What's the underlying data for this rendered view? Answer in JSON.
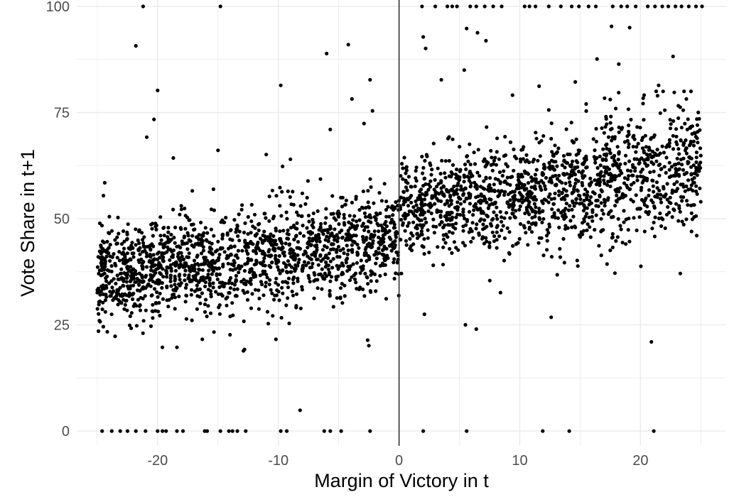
{
  "chart_data": {
    "type": "scatter",
    "title": "",
    "xlabel": "Margin of Victory in t",
    "ylabel": "Vote Share in t+1",
    "xlim": [
      -26.7,
      27.1
    ],
    "ylim": [
      -3.5,
      101.5
    ],
    "x_ticks": [
      -20,
      -10,
      0,
      10,
      20
    ],
    "x_tick_labels": [
      "-20",
      "-10",
      "0",
      "10",
      "20"
    ],
    "y_ticks": [
      0,
      25,
      50,
      75,
      100
    ],
    "y_tick_labels": [
      "0",
      "25",
      "50",
      "75",
      "100"
    ],
    "x_minor_gridlines": [
      -25,
      -15,
      -5,
      5,
      15,
      25
    ],
    "y_minor_gridlines": [
      12.5,
      37.5,
      62.5,
      87.5
    ],
    "grid": true,
    "reference_line_x": 0,
    "legend": "none",
    "colors": {
      "points": "#000000",
      "grid": "#ebebeb",
      "reference_line": "#333333"
    },
    "points": [
      [
        -24.6,
        0
      ],
      [
        -23.8,
        0
      ],
      [
        -23.1,
        0
      ],
      [
        -22.5,
        0
      ],
      [
        -21.8,
        0
      ],
      [
        -21.0,
        0
      ],
      [
        -20.0,
        0
      ],
      [
        -19.6,
        0
      ],
      [
        -19.3,
        0
      ],
      [
        -18.4,
        0
      ],
      [
        -17.9,
        0
      ],
      [
        -16.1,
        0
      ],
      [
        -15.9,
        0
      ],
      [
        -14.8,
        0
      ],
      [
        -14.1,
        0
      ],
      [
        -13.8,
        0
      ],
      [
        -13.4,
        0
      ],
      [
        -12.7,
        0
      ],
      [
        -9.8,
        0
      ],
      [
        -9.3,
        0
      ],
      [
        -6.2,
        0
      ],
      [
        -5.7,
        0
      ],
      [
        -4.8,
        0
      ],
      [
        -2.4,
        0
      ],
      [
        2.0,
        0
      ],
      [
        5.6,
        0
      ],
      [
        11.9,
        0
      ],
      [
        14.1,
        0
      ],
      [
        21.1,
        0
      ],
      [
        -21.2,
        100
      ],
      [
        -14.8,
        100
      ],
      [
        1.9,
        100
      ],
      [
        3.0,
        100
      ],
      [
        4.0,
        100
      ],
      [
        4.4,
        100
      ],
      [
        4.8,
        100
      ],
      [
        5.9,
        100
      ],
      [
        6.4,
        100
      ],
      [
        7.1,
        100
      ],
      [
        7.8,
        100
      ],
      [
        8.5,
        100
      ],
      [
        10.4,
        100
      ],
      [
        10.8,
        100
      ],
      [
        11.3,
        100
      ],
      [
        12.4,
        100
      ],
      [
        13.4,
        100
      ],
      [
        14.3,
        100
      ],
      [
        14.9,
        100
      ],
      [
        15.7,
        100
      ],
      [
        16.3,
        100
      ],
      [
        17.7,
        100
      ],
      [
        18.4,
        100
      ],
      [
        18.9,
        100
      ],
      [
        19.6,
        100
      ],
      [
        20.6,
        100
      ],
      [
        21.2,
        100
      ],
      [
        21.8,
        100
      ],
      [
        22.3,
        100
      ],
      [
        22.9,
        100
      ],
      [
        23.4,
        100
      ],
      [
        24.0,
        100
      ],
      [
        24.6,
        100
      ],
      [
        25.1,
        100
      ],
      [
        -21.8,
        90.7
      ],
      [
        -20.0,
        80.2
      ],
      [
        -20.3,
        73.4
      ],
      [
        -20.9,
        69.2
      ],
      [
        -18.7,
        64.3
      ],
      [
        -15.0,
        66.1
      ],
      [
        -11.0,
        65.1
      ],
      [
        -9.8,
        81.4
      ],
      [
        -9.0,
        64.0
      ],
      [
        -6.0,
        88.9
      ],
      [
        -5.7,
        71.0
      ],
      [
        -4.2,
        91.0
      ],
      [
        -3.9,
        78.2
      ],
      [
        -2.9,
        72.4
      ],
      [
        -2.4,
        82.7
      ],
      [
        -2.2,
        75.4
      ],
      [
        2.0,
        92.8
      ],
      [
        2.2,
        90.1
      ],
      [
        3.5,
        82.7
      ],
      [
        5.4,
        85.0
      ],
      [
        5.6,
        94.8
      ],
      [
        6.5,
        93.8
      ],
      [
        7.2,
        91.9
      ],
      [
        9.4,
        79.1
      ],
      [
        11.6,
        81.2
      ],
      [
        12.4,
        75.6
      ],
      [
        14.6,
        82.2
      ],
      [
        15.5,
        77.0
      ],
      [
        16.4,
        87.6
      ],
      [
        17.6,
        95.3
      ],
      [
        18.2,
        86.4
      ],
      [
        19.1,
        95.0
      ],
      [
        20.3,
        79.1
      ],
      [
        21.5,
        81.4
      ],
      [
        22.7,
        88.2
      ],
      [
        23.8,
        78.2
      ],
      [
        -8.2,
        4.9
      ],
      [
        12.6,
        26.8
      ],
      [
        20.9,
        21.0
      ],
      [
        -19.6,
        19.7
      ],
      [
        -18.4,
        19.7
      ],
      [
        -12.8,
        19.2
      ],
      [
        -2.5,
        20.1
      ],
      [
        -2.6,
        21.4
      ],
      [
        -10.2,
        21.6
      ],
      [
        -16.3,
        21.6
      ],
      [
        5.5,
        25.0
      ],
      [
        6.4,
        24.0
      ],
      [
        2.1,
        27.5
      ],
      [
        8.4,
        32.6
      ],
      [
        13.1,
        36.8
      ],
      [
        23.3,
        37.1
      ],
      [
        -24.9,
        23.5
      ]
    ],
    "clusters": [
      {
        "x_from": -25,
        "x_to": -16,
        "y_center": 38.5,
        "y_spread": 6.0,
        "count": 640,
        "seed": 11
      },
      {
        "x_from": -16,
        "x_to": -8,
        "y_center": 41.0,
        "y_spread": 6.0,
        "count": 470,
        "seed": 23
      },
      {
        "x_from": -8,
        "x_to": 0,
        "y_center": 43.5,
        "y_spread": 5.5,
        "count": 470,
        "seed": 37
      },
      {
        "x_from": 0,
        "x_to": 8,
        "y_center": 53.5,
        "y_spread": 6.0,
        "count": 470,
        "seed": 41
      },
      {
        "x_from": 8,
        "x_to": 17,
        "y_center": 56.5,
        "y_spread": 6.5,
        "count": 520,
        "seed": 53
      },
      {
        "x_from": 17,
        "x_to": 25,
        "y_center": 61.0,
        "y_spread": 7.0,
        "count": 470,
        "seed": 67
      }
    ]
  }
}
